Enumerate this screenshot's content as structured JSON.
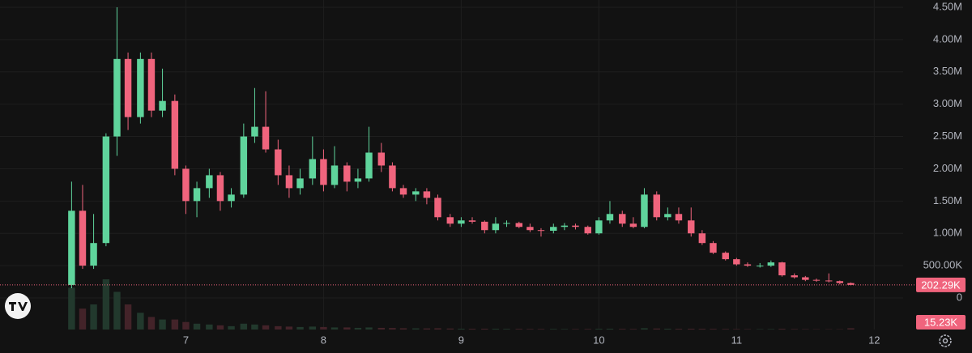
{
  "chart_data": {
    "type": "candlestick",
    "x": [
      6.17,
      6.25,
      6.33,
      6.42,
      6.5,
      6.58,
      6.67,
      6.75,
      6.83,
      6.92,
      7.0,
      7.08,
      7.17,
      7.25,
      7.33,
      7.42,
      7.5,
      7.58,
      7.67,
      7.75,
      7.83,
      7.92,
      8.0,
      8.08,
      8.17,
      8.25,
      8.33,
      8.42,
      8.5,
      8.58,
      8.67,
      8.75,
      8.83,
      8.92,
      9.0,
      9.08,
      9.17,
      9.25,
      9.33,
      9.42,
      9.5,
      9.58,
      9.67,
      9.75,
      9.83,
      9.92,
      10.0,
      10.08,
      10.17,
      10.25,
      10.33,
      10.42,
      10.5,
      10.58,
      10.67,
      10.75,
      10.83,
      10.92,
      11.0,
      11.08,
      11.17,
      11.25,
      11.33,
      11.42,
      11.5,
      11.58,
      11.67,
      11.75,
      11.83
    ],
    "open": [
      200000,
      1350000,
      500000,
      850000,
      2500000,
      3700000,
      2800000,
      3700000,
      2900000,
      3050000,
      2000000,
      1500000,
      1700000,
      1900000,
      1500000,
      1600000,
      2500000,
      2650000,
      2300000,
      1900000,
      1700000,
      1850000,
      2150000,
      1750000,
      2050000,
      1800000,
      1850000,
      2250000,
      2050000,
      1700000,
      1600000,
      1650000,
      1550000,
      1250000,
      1150000,
      1200000,
      1180000,
      1050000,
      1150000,
      1160000,
      1100000,
      1050000,
      1040000,
      1100000,
      1120000,
      1100000,
      1000000,
      1200000,
      1300000,
      1150000,
      1100000,
      1600000,
      1250000,
      1300000,
      1200000,
      1000000,
      850000,
      700000,
      600000,
      520000,
      500000,
      500000,
      550000,
      350000,
      320000,
      280000,
      270000,
      260000,
      230000
    ],
    "high": [
      1800000,
      1750000,
      1300000,
      2550000,
      4500000,
      3800000,
      3800000,
      3800000,
      3550000,
      3150000,
      2050000,
      1800000,
      2000000,
      1950000,
      1700000,
      2700000,
      3250000,
      3200000,
      2450000,
      2050000,
      2000000,
      2500000,
      2300000,
      2350000,
      2100000,
      2000000,
      2650000,
      2400000,
      2100000,
      1750000,
      1700000,
      1700000,
      1600000,
      1300000,
      1250000,
      1250000,
      1200000,
      1250000,
      1200000,
      1180000,
      1150000,
      1080000,
      1150000,
      1160000,
      1150000,
      1120000,
      1250000,
      1500000,
      1350000,
      1250000,
      1700000,
      1650000,
      1400000,
      1400000,
      1400000,
      1050000,
      880000,
      720000,
      620000,
      550000,
      540000,
      580000,
      560000,
      380000,
      340000,
      300000,
      380000,
      270000,
      240000
    ],
    "low": [
      150000,
      450000,
      450000,
      800000,
      2200000,
      2600000,
      2700000,
      2800000,
      2800000,
      1900000,
      1300000,
      1250000,
      1550000,
      1350000,
      1400000,
      1550000,
      2400000,
      2250000,
      1750000,
      1550000,
      1600000,
      1750000,
      1650000,
      1700000,
      1650000,
      1700000,
      1800000,
      1950000,
      1650000,
      1550000,
      1500000,
      1450000,
      1200000,
      1100000,
      1100000,
      1150000,
      1000000,
      1000000,
      1100000,
      1080000,
      1020000,
      950000,
      1000000,
      1050000,
      1060000,
      980000,
      980000,
      1150000,
      1100000,
      1080000,
      1080000,
      1200000,
      1200000,
      1150000,
      950000,
      820000,
      680000,
      580000,
      500000,
      480000,
      470000,
      480000,
      330000,
      300000,
      260000,
      250000,
      240000,
      210000,
      195000
    ],
    "close": [
      1350000,
      500000,
      850000,
      2500000,
      3700000,
      2800000,
      3700000,
      2900000,
      3050000,
      2000000,
      1500000,
      1700000,
      1900000,
      1500000,
      1600000,
      2500000,
      2650000,
      2300000,
      1900000,
      1700000,
      1850000,
      2150000,
      1750000,
      2050000,
      1800000,
      1850000,
      2250000,
      2050000,
      1700000,
      1600000,
      1650000,
      1550000,
      1250000,
      1150000,
      1200000,
      1180000,
      1050000,
      1150000,
      1160000,
      1100000,
      1050000,
      1040000,
      1100000,
      1120000,
      1100000,
      1000000,
      1200000,
      1300000,
      1150000,
      1100000,
      1600000,
      1250000,
      1300000,
      1200000,
      1000000,
      850000,
      700000,
      600000,
      520000,
      500000,
      500000,
      550000,
      350000,
      320000,
      280000,
      270000,
      260000,
      230000,
      202290
    ],
    "volume": [
      500000,
      250000,
      300000,
      600000,
      450000,
      300000,
      200000,
      150000,
      120000,
      120000,
      90000,
      70000,
      60000,
      50000,
      40000,
      70000,
      60000,
      50000,
      40000,
      35000,
      30000,
      35000,
      30000,
      25000,
      25000,
      20000,
      25000,
      20000,
      18000,
      15000,
      14000,
      13000,
      15000,
      12000,
      10000,
      9000,
      10000,
      9000,
      8000,
      8000,
      7000,
      7000,
      7000,
      6000,
      6000,
      7000,
      9000,
      10000,
      8000,
      7000,
      15000,
      12000,
      10000,
      9000,
      10000,
      9000,
      8000,
      7000,
      6000,
      5000,
      5000,
      6000,
      9000,
      6000,
      5000,
      4000,
      4000,
      4000,
      15230
    ],
    "last_price_label": "202.29K",
    "last_volume_label": "15.23K",
    "up_color": "#5fd49c",
    "down_color": "#f0647d",
    "volume_up_color": "#22392d",
    "volume_down_color": "#432329",
    "xlim": [
      5.65,
      12.21
    ],
    "xticks": [
      7,
      8,
      9,
      10,
      11,
      12
    ],
    "ylim": [
      -489000,
      4613000
    ],
    "yticks": [
      0,
      {
        "value": 500000,
        "label": "500.00K"
      },
      {
        "value": 1000000,
        "label": "1.00M"
      },
      {
        "value": 1500000,
        "label": "1.50M"
      },
      {
        "value": 2000000,
        "label": "2.00M"
      },
      {
        "value": 2500000,
        "label": "2.50M"
      },
      {
        "value": 3000000,
        "label": "3.00M"
      },
      {
        "value": 3500000,
        "label": "3.50M"
      },
      {
        "value": 4000000,
        "label": "4.00M"
      },
      {
        "value": 4500000,
        "label": "4.50M"
      }
    ],
    "grid": true
  }
}
